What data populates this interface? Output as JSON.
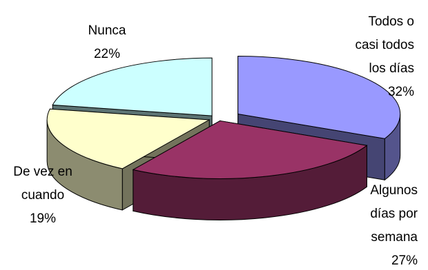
{
  "chart_data": {
    "type": "pie",
    "style": "3d-exploded",
    "slices": [
      {
        "label_lines": [
          "Todos o",
          "casi todos",
          "los días"
        ],
        "value": 32,
        "value_text": "32%",
        "color": "#9999ff"
      },
      {
        "label_lines": [
          "Algunos",
          "días por",
          "semana"
        ],
        "value": 27,
        "value_text": "27%",
        "color": "#993366"
      },
      {
        "label_lines": [
          "De vez en",
          "cuando"
        ],
        "value": 19,
        "value_text": "19%",
        "color": "#ffffcc"
      },
      {
        "label_lines": [
          "Nunca"
        ],
        "value": 22,
        "value_text": "22%",
        "color": "#ccffff"
      }
    ],
    "legend": "none"
  }
}
